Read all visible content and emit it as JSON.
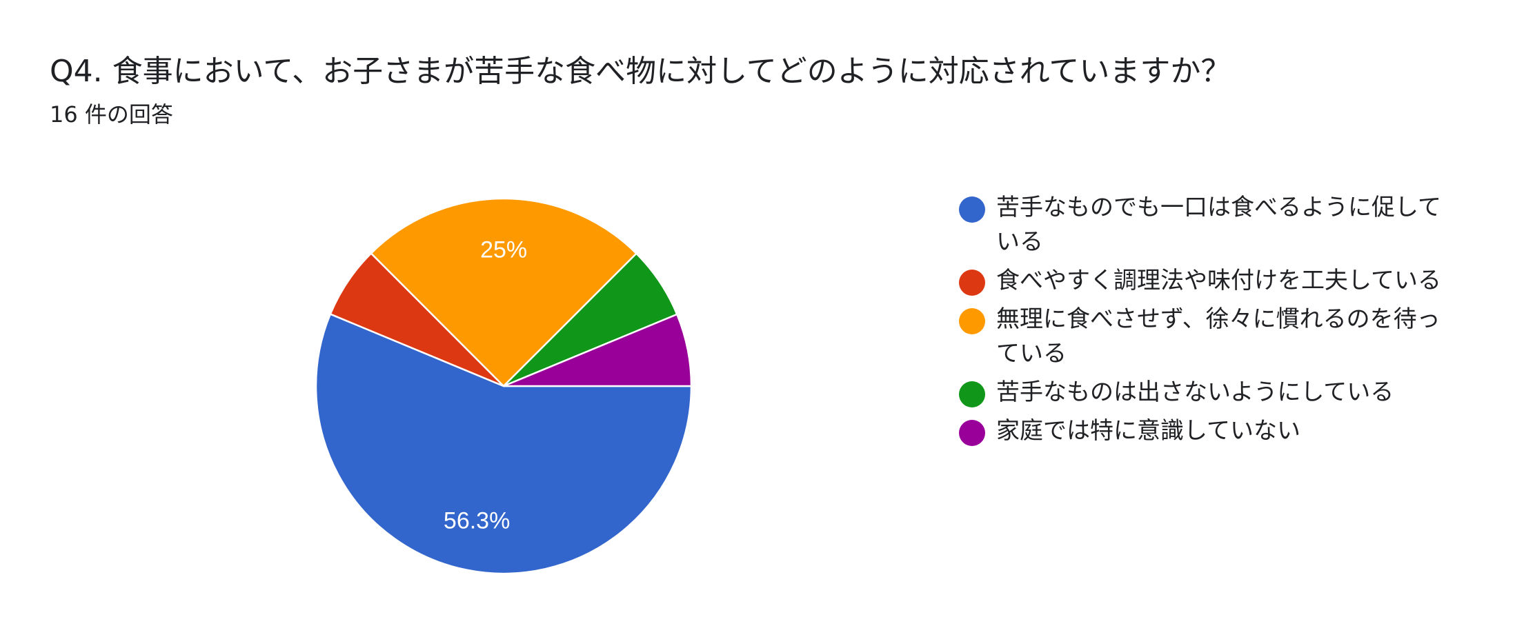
{
  "header": {
    "title": "Q4. 食事において、お子さまが苦手な食べ物に対してどのように対応されていますか？",
    "response_count": "16 件の回答"
  },
  "chart_data": {
    "type": "pie",
    "categories": [
      "苦手なものでも一口は食べるように促している",
      "食べやすく調理法や味付けを工夫している",
      "無理に食べさせず、徐々に慣れるのを待っている",
      "苦手なものは出さないようにしている",
      "家庭では特に意識していない"
    ],
    "values": [
      56.3,
      6.25,
      25,
      6.25,
      6.25
    ],
    "counts": [
      9,
      1,
      4,
      1,
      1
    ],
    "data_labels": [
      "56.3%",
      "",
      "25%",
      "",
      ""
    ],
    "colors": [
      "#3366cc",
      "#dc3912",
      "#ff9900",
      "#109618",
      "#990099"
    ],
    "legend_position": "right"
  }
}
